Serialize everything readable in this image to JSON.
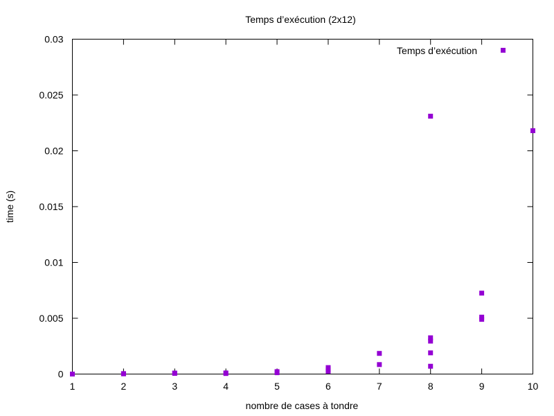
{
  "chart_data": {
    "type": "scatter",
    "title": "Temps d’exécution (2x12)",
    "xlabel": "nombre de cases à tondre",
    "ylabel": "time (s)",
    "xlim": [
      1,
      10
    ],
    "ylim": [
      0,
      0.03
    ],
    "x_ticks": [
      "1",
      "2",
      "3",
      "4",
      "5",
      "6",
      "7",
      "8",
      "9",
      "10"
    ],
    "y_ticks": [
      "0",
      "0.005",
      "0.01",
      "0.015",
      "0.02",
      "0.025",
      "0.03"
    ],
    "legend_position": "top-right",
    "grid": false,
    "series": [
      {
        "name": "Temps d’exécution",
        "color": "#9400d3",
        "marker": "square",
        "points": [
          [
            1,
            0.0
          ],
          [
            2,
            2e-05
          ],
          [
            2,
            4e-05
          ],
          [
            3,
            6e-05
          ],
          [
            3,
            9e-05
          ],
          [
            4,
            5e-05
          ],
          [
            4,
            0.0001
          ],
          [
            5,
            0.00012
          ],
          [
            5,
            0.00022
          ],
          [
            6,
            0.00025
          ],
          [
            6,
            0.0004
          ],
          [
            6,
            0.00058
          ],
          [
            7,
            0.00085
          ],
          [
            7,
            0.00185
          ],
          [
            8,
            0.0007
          ],
          [
            8,
            0.0019
          ],
          [
            8,
            0.00295
          ],
          [
            8,
            0.00325
          ],
          [
            8,
            0.0231
          ],
          [
            9,
            0.0049
          ],
          [
            9,
            0.0051
          ],
          [
            9,
            0.00725
          ],
          [
            10,
            0.0218
          ]
        ]
      }
    ]
  }
}
